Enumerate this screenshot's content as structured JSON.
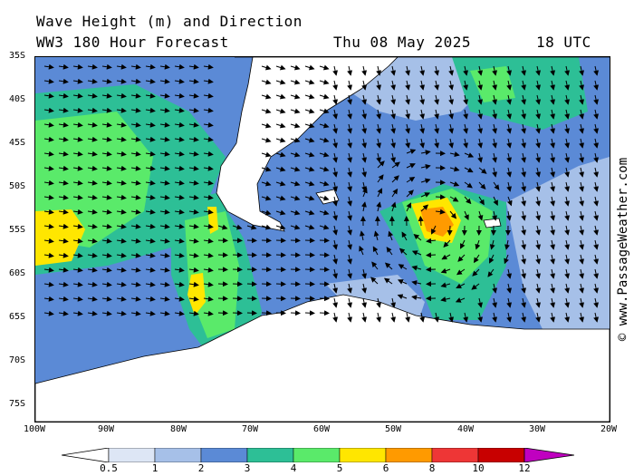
{
  "header": {
    "title": "Wave Height (m) and Direction",
    "model_line": "WW3 180 Hour Forecast",
    "date": "Thu 08 May 2025",
    "time": "18 UTC"
  },
  "copyright": "© www.PassageWeather.com",
  "lat_labels": [
    "35S",
    "40S",
    "45S",
    "50S",
    "55S",
    "60S",
    "65S",
    "70S",
    "75S"
  ],
  "lon_labels": [
    "100W",
    "90W",
    "80W",
    "70W",
    "60W",
    "50W",
    "40W",
    "30W",
    "20W"
  ],
  "legend": {
    "labels": [
      "0.5",
      "1",
      "2",
      "3",
      "4",
      "5",
      "6",
      "8",
      "10",
      "12"
    ],
    "colors": [
      "#ffffff",
      "#dde6f5",
      "#a6c0e8",
      "#5b8ad6",
      "#2dbf96",
      "#5aea6a",
      "#ffe600",
      "#ff9a00",
      "#ee3636",
      "#c80000",
      "#c000c0"
    ]
  },
  "colors": {
    "land": "#ffffff",
    "ice": "#ffffff",
    "arrow": "#000000",
    "coast": "#000000"
  }
}
